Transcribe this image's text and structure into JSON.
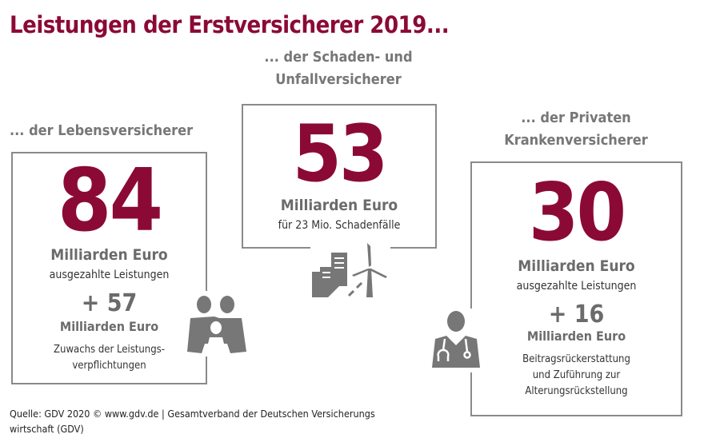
{
  "title": "Leistungen der Erstversicherer 2019...",
  "colors": {
    "accent": "#8b0a35",
    "gray": "#6b6b6b",
    "border": "#8a8a8a"
  },
  "leben": {
    "heading": "... der Lebensversicherer",
    "value": "84",
    "unit": "Milliarden Euro",
    "desc": "ausgezahlte Leistungen",
    "plus": "+ 57",
    "plus_unit": "Milliarden Euro",
    "plus_desc_1": "Zuwachs der Leistungs-",
    "plus_desc_2": "verpflichtungen",
    "icon": "family-icon"
  },
  "schaden": {
    "heading_1": "... der Schaden- und",
    "heading_2": "Unfallversicherer",
    "value": "53",
    "unit": "Milliarden Euro",
    "desc": "für 23 Mio. Schadenfälle",
    "icon": "city-windmill-icon"
  },
  "kranken": {
    "heading_1": "... der Privaten",
    "heading_2": "Krankenversicherer",
    "value": "30",
    "unit": "Milliarden Euro",
    "desc": "ausgezahlte Leistungen",
    "plus": "+ 16",
    "plus_unit": "Milliarden Euro",
    "plus_desc_1": "Beitragsrückerstattung",
    "plus_desc_2": "und Zuführung zur",
    "plus_desc_3": "Alterungsrückstellung",
    "icon": "doctor-icon"
  },
  "footer": {
    "line1": "Quelle: GDV 2020  © www.gdv.de | Gesamtverband der Deutschen Versicherungs",
    "line2": "wirtschaft (GDV)"
  }
}
